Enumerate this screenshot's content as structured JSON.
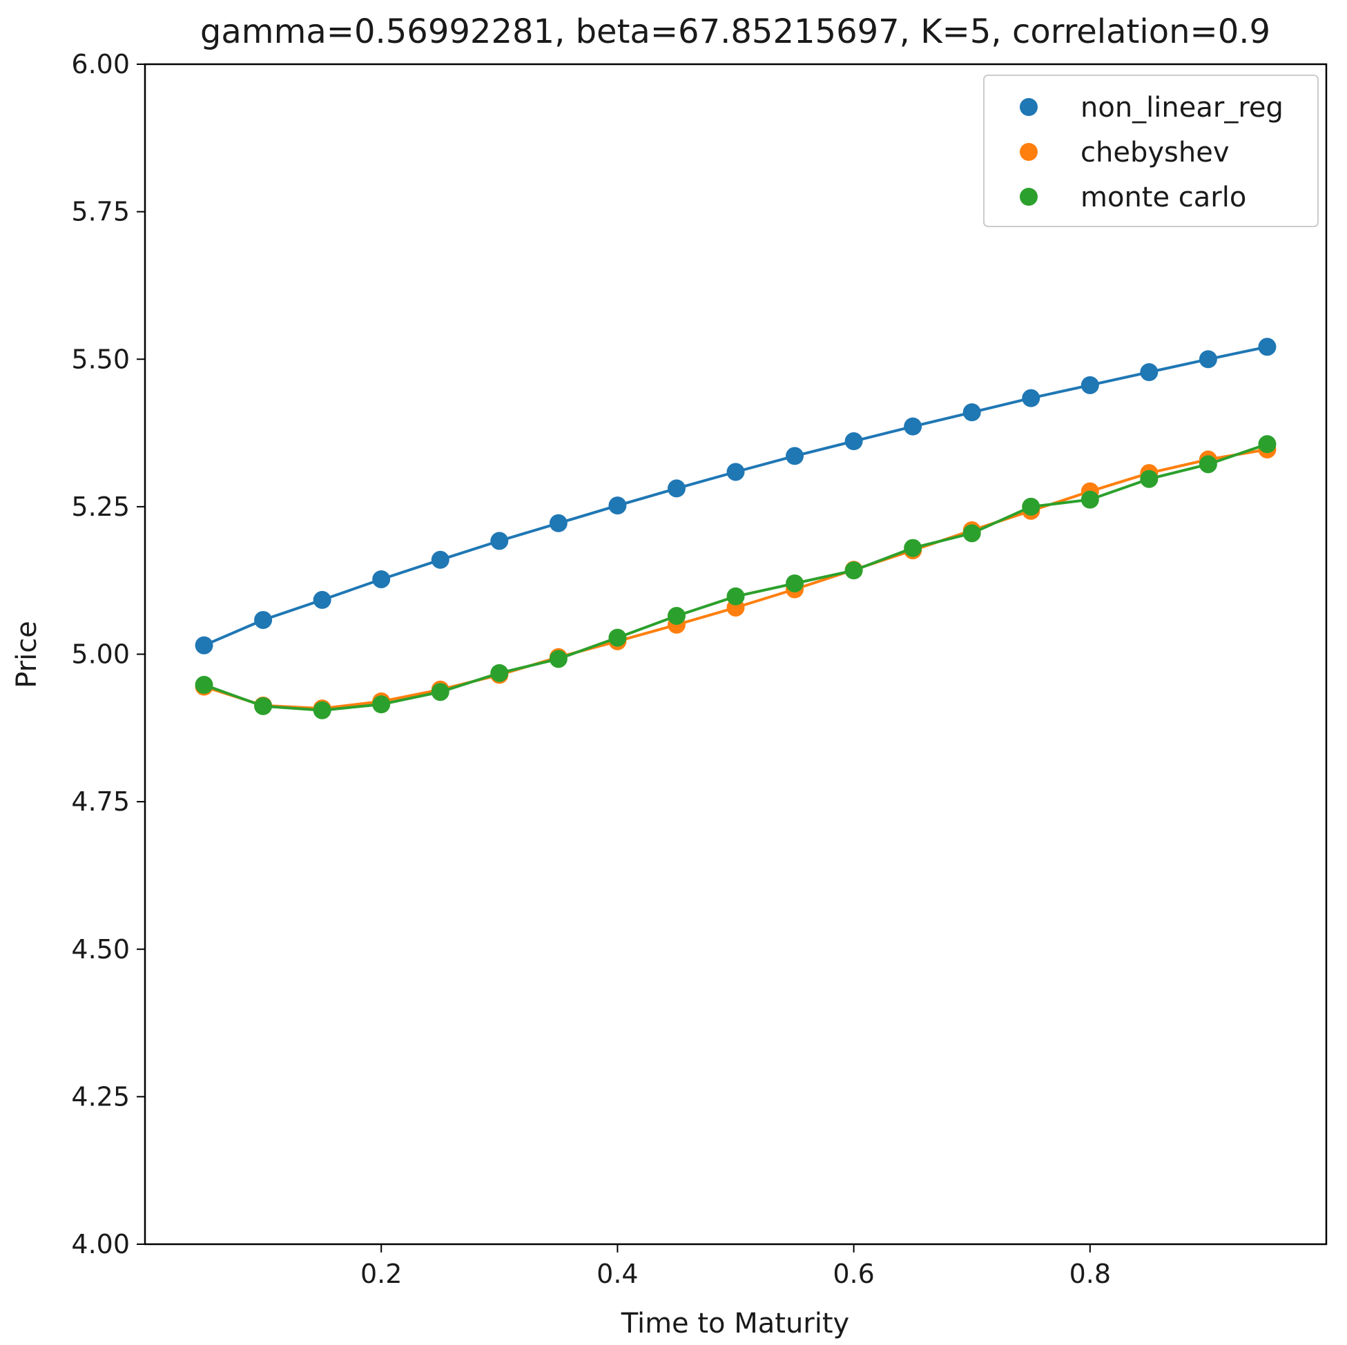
{
  "chart_data": {
    "type": "line",
    "title": "gamma=0.56992281, beta=67.85215697, K=5, correlation=0.9",
    "xlabel": "Time to Maturity",
    "ylabel": "Price",
    "xlim": [
      0.0,
      1.0
    ],
    "ylim": [
      4.0,
      6.0
    ],
    "xticks": [
      0.2,
      0.4,
      0.6,
      0.8
    ],
    "xtick_labels": [
      "0.2",
      "0.4",
      "0.6",
      "0.8"
    ],
    "yticks": [
      4.0,
      4.25,
      4.5,
      4.75,
      5.0,
      5.25,
      5.5,
      5.75,
      6.0
    ],
    "ytick_labels": [
      "4.00",
      "4.25",
      "4.50",
      "4.75",
      "5.00",
      "5.25",
      "5.50",
      "5.75",
      "6.00"
    ],
    "grid": false,
    "legend_position": "top-right",
    "x": [
      0.05,
      0.1,
      0.15,
      0.2,
      0.25,
      0.3,
      0.35,
      0.4,
      0.45,
      0.5,
      0.55,
      0.6,
      0.65,
      0.7,
      0.75,
      0.8,
      0.85,
      0.9,
      0.95
    ],
    "series": [
      {
        "name": "non_linear_reg",
        "color": "#1f77b4",
        "values": [
          5.015,
          5.058,
          5.092,
          5.127,
          5.16,
          5.192,
          5.222,
          5.252,
          5.281,
          5.309,
          5.336,
          5.361,
          5.386,
          5.41,
          5.434,
          5.456,
          5.478,
          5.5,
          5.521
        ]
      },
      {
        "name": "chebyshev",
        "color": "#ff7f0e",
        "values": [
          4.945,
          4.913,
          4.908,
          4.92,
          4.94,
          4.965,
          4.995,
          5.022,
          5.05,
          5.079,
          5.11,
          5.143,
          5.176,
          5.21,
          5.243,
          5.276,
          5.307,
          5.33,
          5.347
        ]
      },
      {
        "name": "monte carlo",
        "color": "#2ca02c",
        "values": [
          4.948,
          4.912,
          4.905,
          4.915,
          4.936,
          4.968,
          4.992,
          5.028,
          5.065,
          5.098,
          5.12,
          5.142,
          5.18,
          5.205,
          5.25,
          5.262,
          5.297,
          5.322,
          5.356
        ]
      }
    ]
  }
}
